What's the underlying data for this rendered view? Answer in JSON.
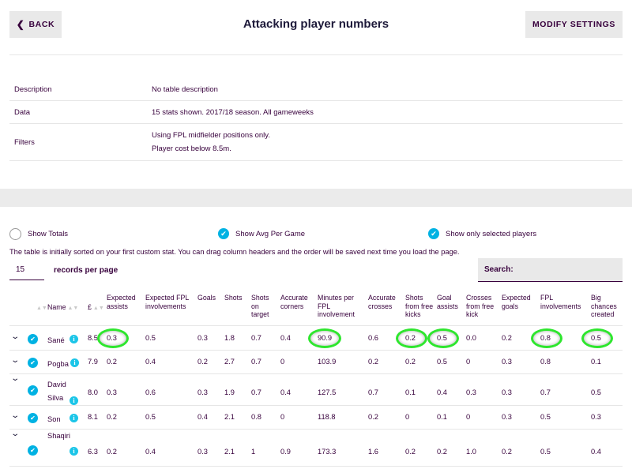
{
  "header": {
    "back_label": "BACK",
    "title": "Attacking player numbers",
    "modify_label": "MODIFY SETTINGS"
  },
  "info": {
    "description_label": "Description",
    "description_value": "No table description",
    "data_label": "Data",
    "data_value": "15 stats shown. 2017/18 season. All gameweeks",
    "filters_label": "Filters",
    "filters_line1": "Using FPL midfielder positions only.",
    "filters_line2": "Player cost below 8.5m."
  },
  "toggles": {
    "show_totals": "Show Totals",
    "show_avg": "Show Avg Per Game",
    "show_selected": "Show only selected players"
  },
  "note": "The table is initially sorted on your first custom stat. You can drag column headers and the order will be saved next time you load the page.",
  "records": {
    "value": "15",
    "label": "records per page"
  },
  "search": {
    "label": "Search:"
  },
  "colors": {
    "brand": "#37003c",
    "accent": "#00b2e3",
    "highlight": "#2ee62e"
  },
  "table": {
    "columns": [
      "Name",
      "£",
      "Expected assists",
      "Expected FPL involvements",
      "Goals",
      "Shots",
      "Shots on target",
      "Accurate corners",
      "Minutes per FPL involvement",
      "Accurate crosses",
      "Shots from free kicks",
      "Goal assists",
      "Crosses from free kick",
      "Expected goals",
      "FPL involvements",
      "Big chances created"
    ],
    "rows": [
      {
        "name": "Sané",
        "cells": [
          "8.5",
          "0.3",
          "0.5",
          "0.3",
          "1.8",
          "0.7",
          "0.4",
          "90.9",
          "0.6",
          "0.2",
          "0.5",
          "0.0",
          "0.2",
          "0.8",
          "0.5"
        ]
      },
      {
        "name": "Pogba",
        "cells": [
          "7.9",
          "0.2",
          "0.4",
          "0.2",
          "2.7",
          "0.7",
          "0",
          "103.9",
          "0.2",
          "0.2",
          "0.5",
          "0",
          "0.3",
          "0.8",
          "0.1"
        ]
      },
      {
        "name": "David Silva",
        "cells": [
          "8.0",
          "0.3",
          "0.6",
          "0.3",
          "1.9",
          "0.7",
          "0.4",
          "127.5",
          "0.7",
          "0.1",
          "0.4",
          "0.3",
          "0.3",
          "0.7",
          "0.5"
        ]
      },
      {
        "name": "Son",
        "cells": [
          "8.1",
          "0.2",
          "0.5",
          "0.4",
          "2.1",
          "0.8",
          "0",
          "118.8",
          "0.2",
          "0",
          "0.1",
          "0",
          "0.3",
          "0.5",
          "0.3"
        ]
      },
      {
        "name": "Shaqiri",
        "cells": [
          "6.3",
          "0.2",
          "0.4",
          "0.3",
          "2.1",
          "1",
          "0.9",
          "173.3",
          "1.6",
          "0.2",
          "0.2",
          "1.0",
          "0.2",
          "0.5",
          "0.4"
        ]
      }
    ]
  }
}
